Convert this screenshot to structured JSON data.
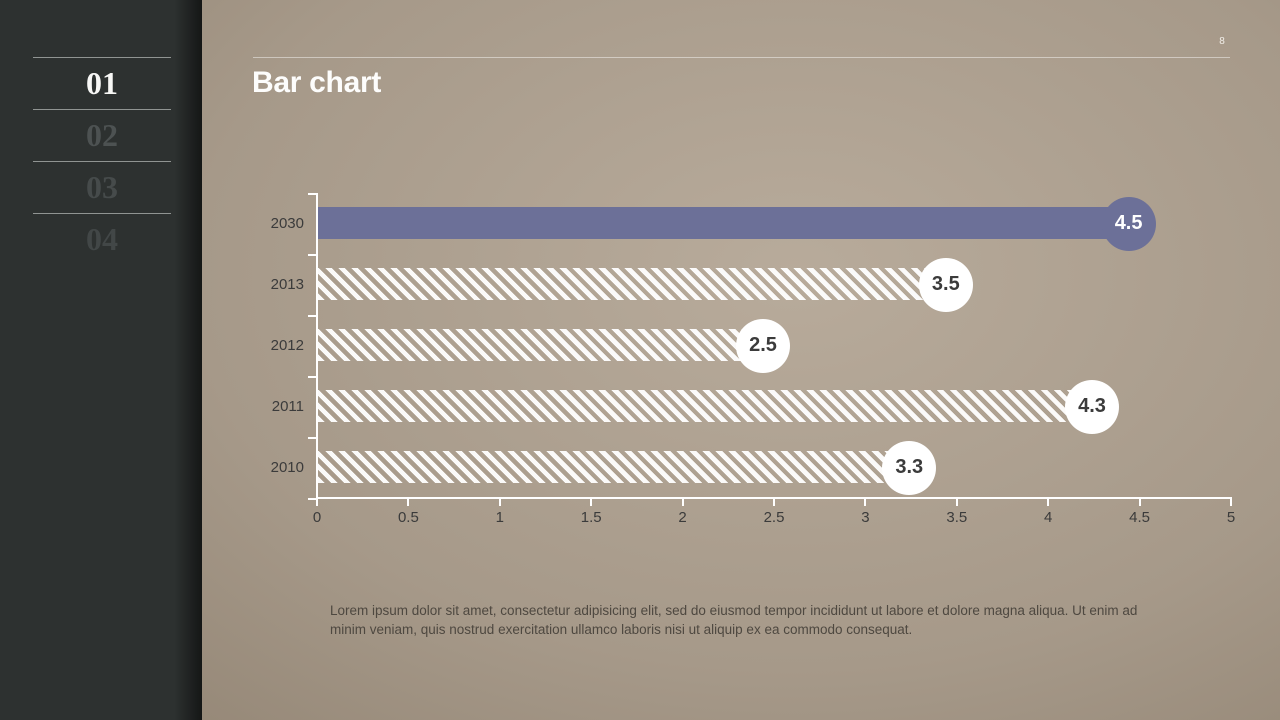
{
  "page_number": "8",
  "header": {
    "title": "Bar chart"
  },
  "sidebar": {
    "items": [
      {
        "label": "01",
        "active": true
      },
      {
        "label": "02",
        "active": false
      },
      {
        "label": "03",
        "active": false
      },
      {
        "label": "04",
        "active": false
      }
    ]
  },
  "chart_data": {
    "type": "bar",
    "orientation": "horizontal",
    "title": "Bar chart",
    "categories": [
      "2030",
      "2013",
      "2012",
      "2011",
      "2010"
    ],
    "values": [
      4.5,
      3.5,
      2.5,
      4.3,
      3.3
    ],
    "value_labels": [
      "4.5",
      "3.5",
      "2.5",
      "4.3",
      "3.3"
    ],
    "highlight_index": 0,
    "xlim": [
      0,
      5
    ],
    "xtick_labels": [
      "0",
      "0.5",
      "1",
      "1.5",
      "2",
      "2.5",
      "3",
      "3.5",
      "4",
      "4.5",
      "5"
    ],
    "grid": false,
    "legend": "none",
    "bar_styles": [
      "solid",
      "striped",
      "striped",
      "striped",
      "striped"
    ]
  },
  "body_text": "Lorem ipsum dolor sit amet, consectetur adipisicing elit, sed do eiusmod tempor incididunt ut labore et dolore magna aliqua. Ut enim ad minim veniam, quis nostrud exercitation ullamco laboris nisi ut aliquip ex ea commodo consequat.",
  "theme": {
    "slide_bg_center": "#b8ab9b",
    "slide_bg_mid": "#a69989",
    "slide_bg_edge": "#8a7c6b",
    "sidebar_bg": "#2d3130",
    "accent_purple": "#6c7098",
    "text_dark": "#3b3b3b",
    "body_text_color": "#4e4840"
  }
}
